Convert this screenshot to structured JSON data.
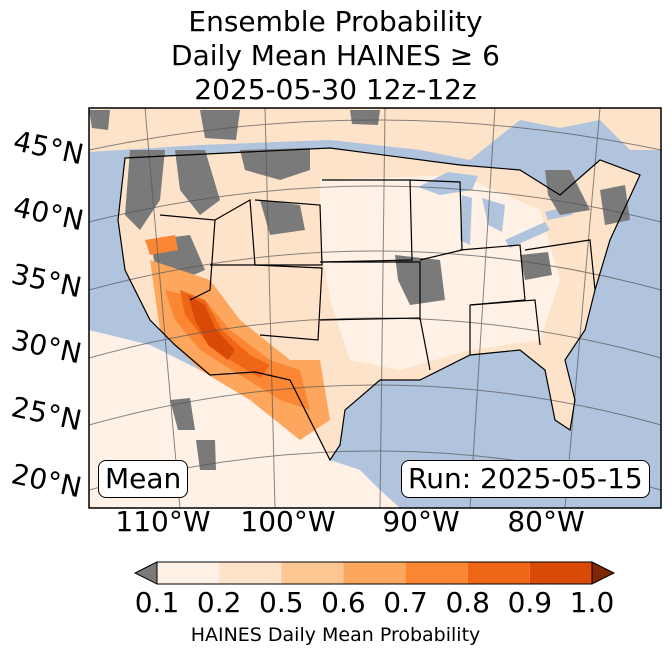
{
  "title": {
    "line1": "Ensemble Probability",
    "line2": "Daily Mean HAINES ≥ 6",
    "line3": "2025-05-30 12z-12z"
  },
  "map": {
    "latitude_labels": [
      "45°N",
      "40°N",
      "35°N",
      "30°N",
      "25°N",
      "20°N"
    ],
    "longitude_labels": [
      "110°W",
      "100°W",
      "90°W",
      "80°W"
    ],
    "stat_label": "Mean",
    "run_label": "Run: 2025-05-15",
    "ocean_color": "#b0c4de",
    "land_color": "#ffffff",
    "missing_color": "#7a7a7a"
  },
  "colorbar": {
    "label": "HAINES Daily Mean Probability",
    "ticks": [
      "0.1",
      "0.2",
      "0.5",
      "0.6",
      "0.7",
      "0.8",
      "0.9",
      "1.0"
    ],
    "colors": [
      "#fff1e5",
      "#fee3cb",
      "#fdc794",
      "#fda65e",
      "#fb8734",
      "#ef6716",
      "#d84a06",
      "#b23b03"
    ],
    "under_color": "#7a7a7a",
    "over_color": "#7f2704"
  }
}
